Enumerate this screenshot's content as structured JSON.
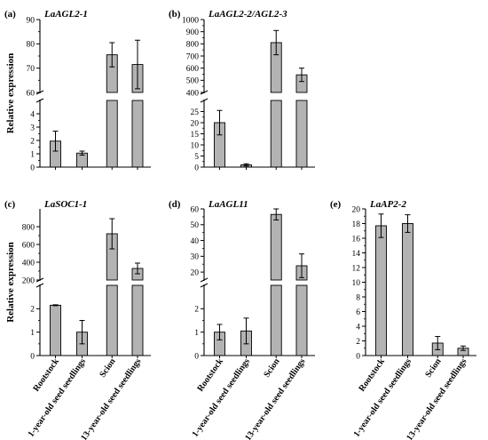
{
  "colors": {
    "bar": "#b3b3b3",
    "axis": "#000000"
  },
  "categories": [
    "Rootstock",
    "1-year-old seed seedlings",
    "Scion",
    "13-year-old seed seedlings"
  ],
  "chart_data": [
    {
      "type": "bar",
      "panel": "(a)",
      "title": "LaAGL2-1",
      "ylabel": "Relative expression",
      "categories": [
        "Rootstock",
        "1-year-old seed seedlings",
        "Scion",
        "13-year-old seed seedlings"
      ],
      "values": [
        1.95,
        1.05,
        75.5,
        71.5
      ],
      "errors": [
        0.75,
        0.15,
        5.0,
        10.0
      ],
      "broken_axis": true,
      "upper": {
        "ylim": [
          60,
          90
        ],
        "ticks": [
          60,
          70,
          80,
          90
        ]
      },
      "lower": {
        "ylim": [
          0,
          5
        ],
        "ticks": [
          0,
          1,
          2,
          3,
          4
        ]
      }
    },
    {
      "type": "bar",
      "panel": "(b)",
      "title": "LaAGL2-2/AGL2-3",
      "ylabel": "",
      "categories": [
        "Rootstock",
        "1-year-old seed seedlings",
        "Scion",
        "13-year-old seed seedlings"
      ],
      "values": [
        20,
        1,
        810,
        545
      ],
      "errors": [
        5.5,
        0.5,
        100,
        55
      ],
      "broken_axis": true,
      "upper": {
        "ylim": [
          400,
          1000
        ],
        "ticks": [
          400,
          500,
          600,
          700,
          800,
          900,
          1000
        ]
      },
      "lower": {
        "ylim": [
          0,
          30
        ],
        "ticks": [
          0,
          5,
          10,
          15,
          20,
          25
        ]
      }
    },
    {
      "type": "bar",
      "panel": "(c)",
      "title": "LaSOC1-1",
      "ylabel": "Relative expression",
      "categories": [
        "Rootstock",
        "1-year-old seed seedlings",
        "Scion",
        "13-year-old seed seedlings"
      ],
      "values": [
        2.15,
        1.0,
        720,
        330
      ],
      "errors": [
        0.02,
        0.5,
        170,
        60
      ],
      "broken_axis": true,
      "upper": {
        "ylim": [
          200,
          1000
        ],
        "ticks": [
          200,
          400,
          600,
          800
        ]
      },
      "lower": {
        "ylim": [
          0,
          3
        ],
        "ticks": [
          0,
          1,
          2
        ]
      }
    },
    {
      "type": "bar",
      "panel": "(d)",
      "title": "LaAGL11",
      "ylabel": "",
      "categories": [
        "Rootstock",
        "1-year-old seed seedlings",
        "Scion",
        "13-year-old seed seedlings"
      ],
      "values": [
        1.0,
        1.05,
        56.5,
        24
      ],
      "errors": [
        0.33,
        0.55,
        3.5,
        7.5
      ],
      "broken_axis": true,
      "upper": {
        "ylim": [
          15,
          60
        ],
        "ticks": [
          20,
          30,
          40,
          50,
          60
        ]
      },
      "lower": {
        "ylim": [
          0,
          3
        ],
        "ticks": [
          0,
          1,
          2
        ]
      }
    },
    {
      "type": "bar",
      "panel": "(e)",
      "title": "LaAP2-2",
      "ylabel": "",
      "categories": [
        "Rootstock",
        "1-year-old seed seedlings",
        "Scion",
        "13-year-old seed seedlings"
      ],
      "values": [
        17.7,
        18.0,
        1.7,
        1.0
      ],
      "errors": [
        1.6,
        1.2,
        0.9,
        0.3
      ],
      "broken_axis": false,
      "ylim": [
        0,
        20
      ],
      "ticks": [
        0,
        2,
        4,
        6,
        8,
        10,
        12,
        14,
        16,
        18,
        20
      ]
    }
  ]
}
